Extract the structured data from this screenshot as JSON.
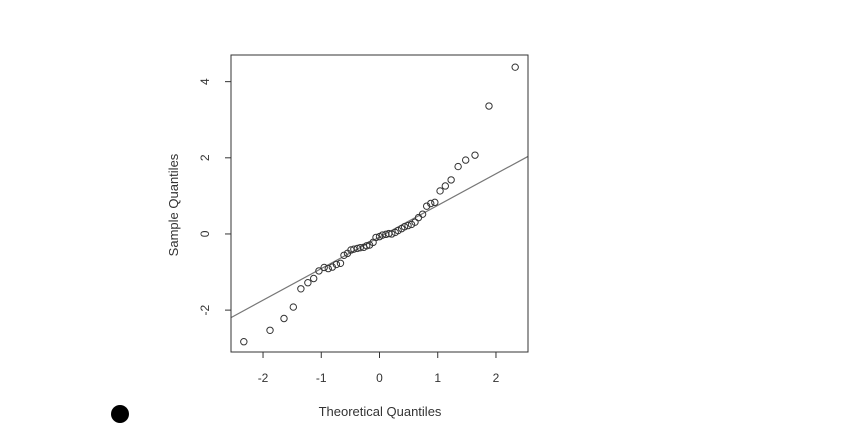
{
  "chart_data": {
    "type": "scatter",
    "title": "",
    "xlabel": "Theoretical Quantiles",
    "ylabel": "Sample Quantiles",
    "xlim": [
      -2.55,
      2.55
    ],
    "ylim": [
      -3.1,
      4.7
    ],
    "xticks": [
      -2,
      -1,
      0,
      1,
      2
    ],
    "xtick_labels": [
      "-2",
      "-1",
      "0",
      "1",
      "2"
    ],
    "yticks": [
      -2,
      0,
      2,
      4
    ],
    "ytick_labels": [
      "-2",
      "0",
      "2",
      "4"
    ],
    "grid": false,
    "reference_line": {
      "intercept": -0.08,
      "slope": 0.83
    },
    "marker": "open-circle",
    "colors": {
      "points": "#333333",
      "line": "#777777",
      "frame": "#333333"
    },
    "points": [
      {
        "x": -2.33,
        "y": -2.83
      },
      {
        "x": -1.88,
        "y": -2.53
      },
      {
        "x": -1.64,
        "y": -2.22
      },
      {
        "x": -1.48,
        "y": -1.92
      },
      {
        "x": -1.35,
        "y": -1.44
      },
      {
        "x": -1.23,
        "y": -1.28
      },
      {
        "x": -1.13,
        "y": -1.17
      },
      {
        "x": -1.04,
        "y": -0.97
      },
      {
        "x": -0.95,
        "y": -0.88
      },
      {
        "x": -0.88,
        "y": -0.91
      },
      {
        "x": -0.81,
        "y": -0.87
      },
      {
        "x": -0.74,
        "y": -0.8
      },
      {
        "x": -0.67,
        "y": -0.77
      },
      {
        "x": -0.61,
        "y": -0.56
      },
      {
        "x": -0.55,
        "y": -0.51
      },
      {
        "x": -0.49,
        "y": -0.42
      },
      {
        "x": -0.44,
        "y": -0.4
      },
      {
        "x": -0.38,
        "y": -0.38
      },
      {
        "x": -0.33,
        "y": -0.36
      },
      {
        "x": -0.27,
        "y": -0.35
      },
      {
        "x": -0.22,
        "y": -0.31
      },
      {
        "x": -0.17,
        "y": -0.29
      },
      {
        "x": -0.11,
        "y": -0.22
      },
      {
        "x": -0.06,
        "y": -0.09
      },
      {
        "x": 0.0,
        "y": -0.07
      },
      {
        "x": 0.05,
        "y": -0.03
      },
      {
        "x": 0.11,
        "y": -0.01
      },
      {
        "x": 0.16,
        "y": 0.01
      },
      {
        "x": 0.21,
        "y": 0.0
      },
      {
        "x": 0.27,
        "y": 0.04
      },
      {
        "x": 0.32,
        "y": 0.09
      },
      {
        "x": 0.38,
        "y": 0.14
      },
      {
        "x": 0.43,
        "y": 0.19
      },
      {
        "x": 0.49,
        "y": 0.22
      },
      {
        "x": 0.55,
        "y": 0.25
      },
      {
        "x": 0.61,
        "y": 0.31
      },
      {
        "x": 0.67,
        "y": 0.43
      },
      {
        "x": 0.74,
        "y": 0.52
      },
      {
        "x": 0.81,
        "y": 0.73
      },
      {
        "x": 0.88,
        "y": 0.8
      },
      {
        "x": 0.95,
        "y": 0.83
      },
      {
        "x": 1.04,
        "y": 1.13
      },
      {
        "x": 1.13,
        "y": 1.26
      },
      {
        "x": 1.23,
        "y": 1.42
      },
      {
        "x": 1.35,
        "y": 1.77
      },
      {
        "x": 1.48,
        "y": 1.94
      },
      {
        "x": 1.64,
        "y": 2.07
      },
      {
        "x": 1.88,
        "y": 3.36
      },
      {
        "x": 2.33,
        "y": 4.38
      }
    ]
  }
}
